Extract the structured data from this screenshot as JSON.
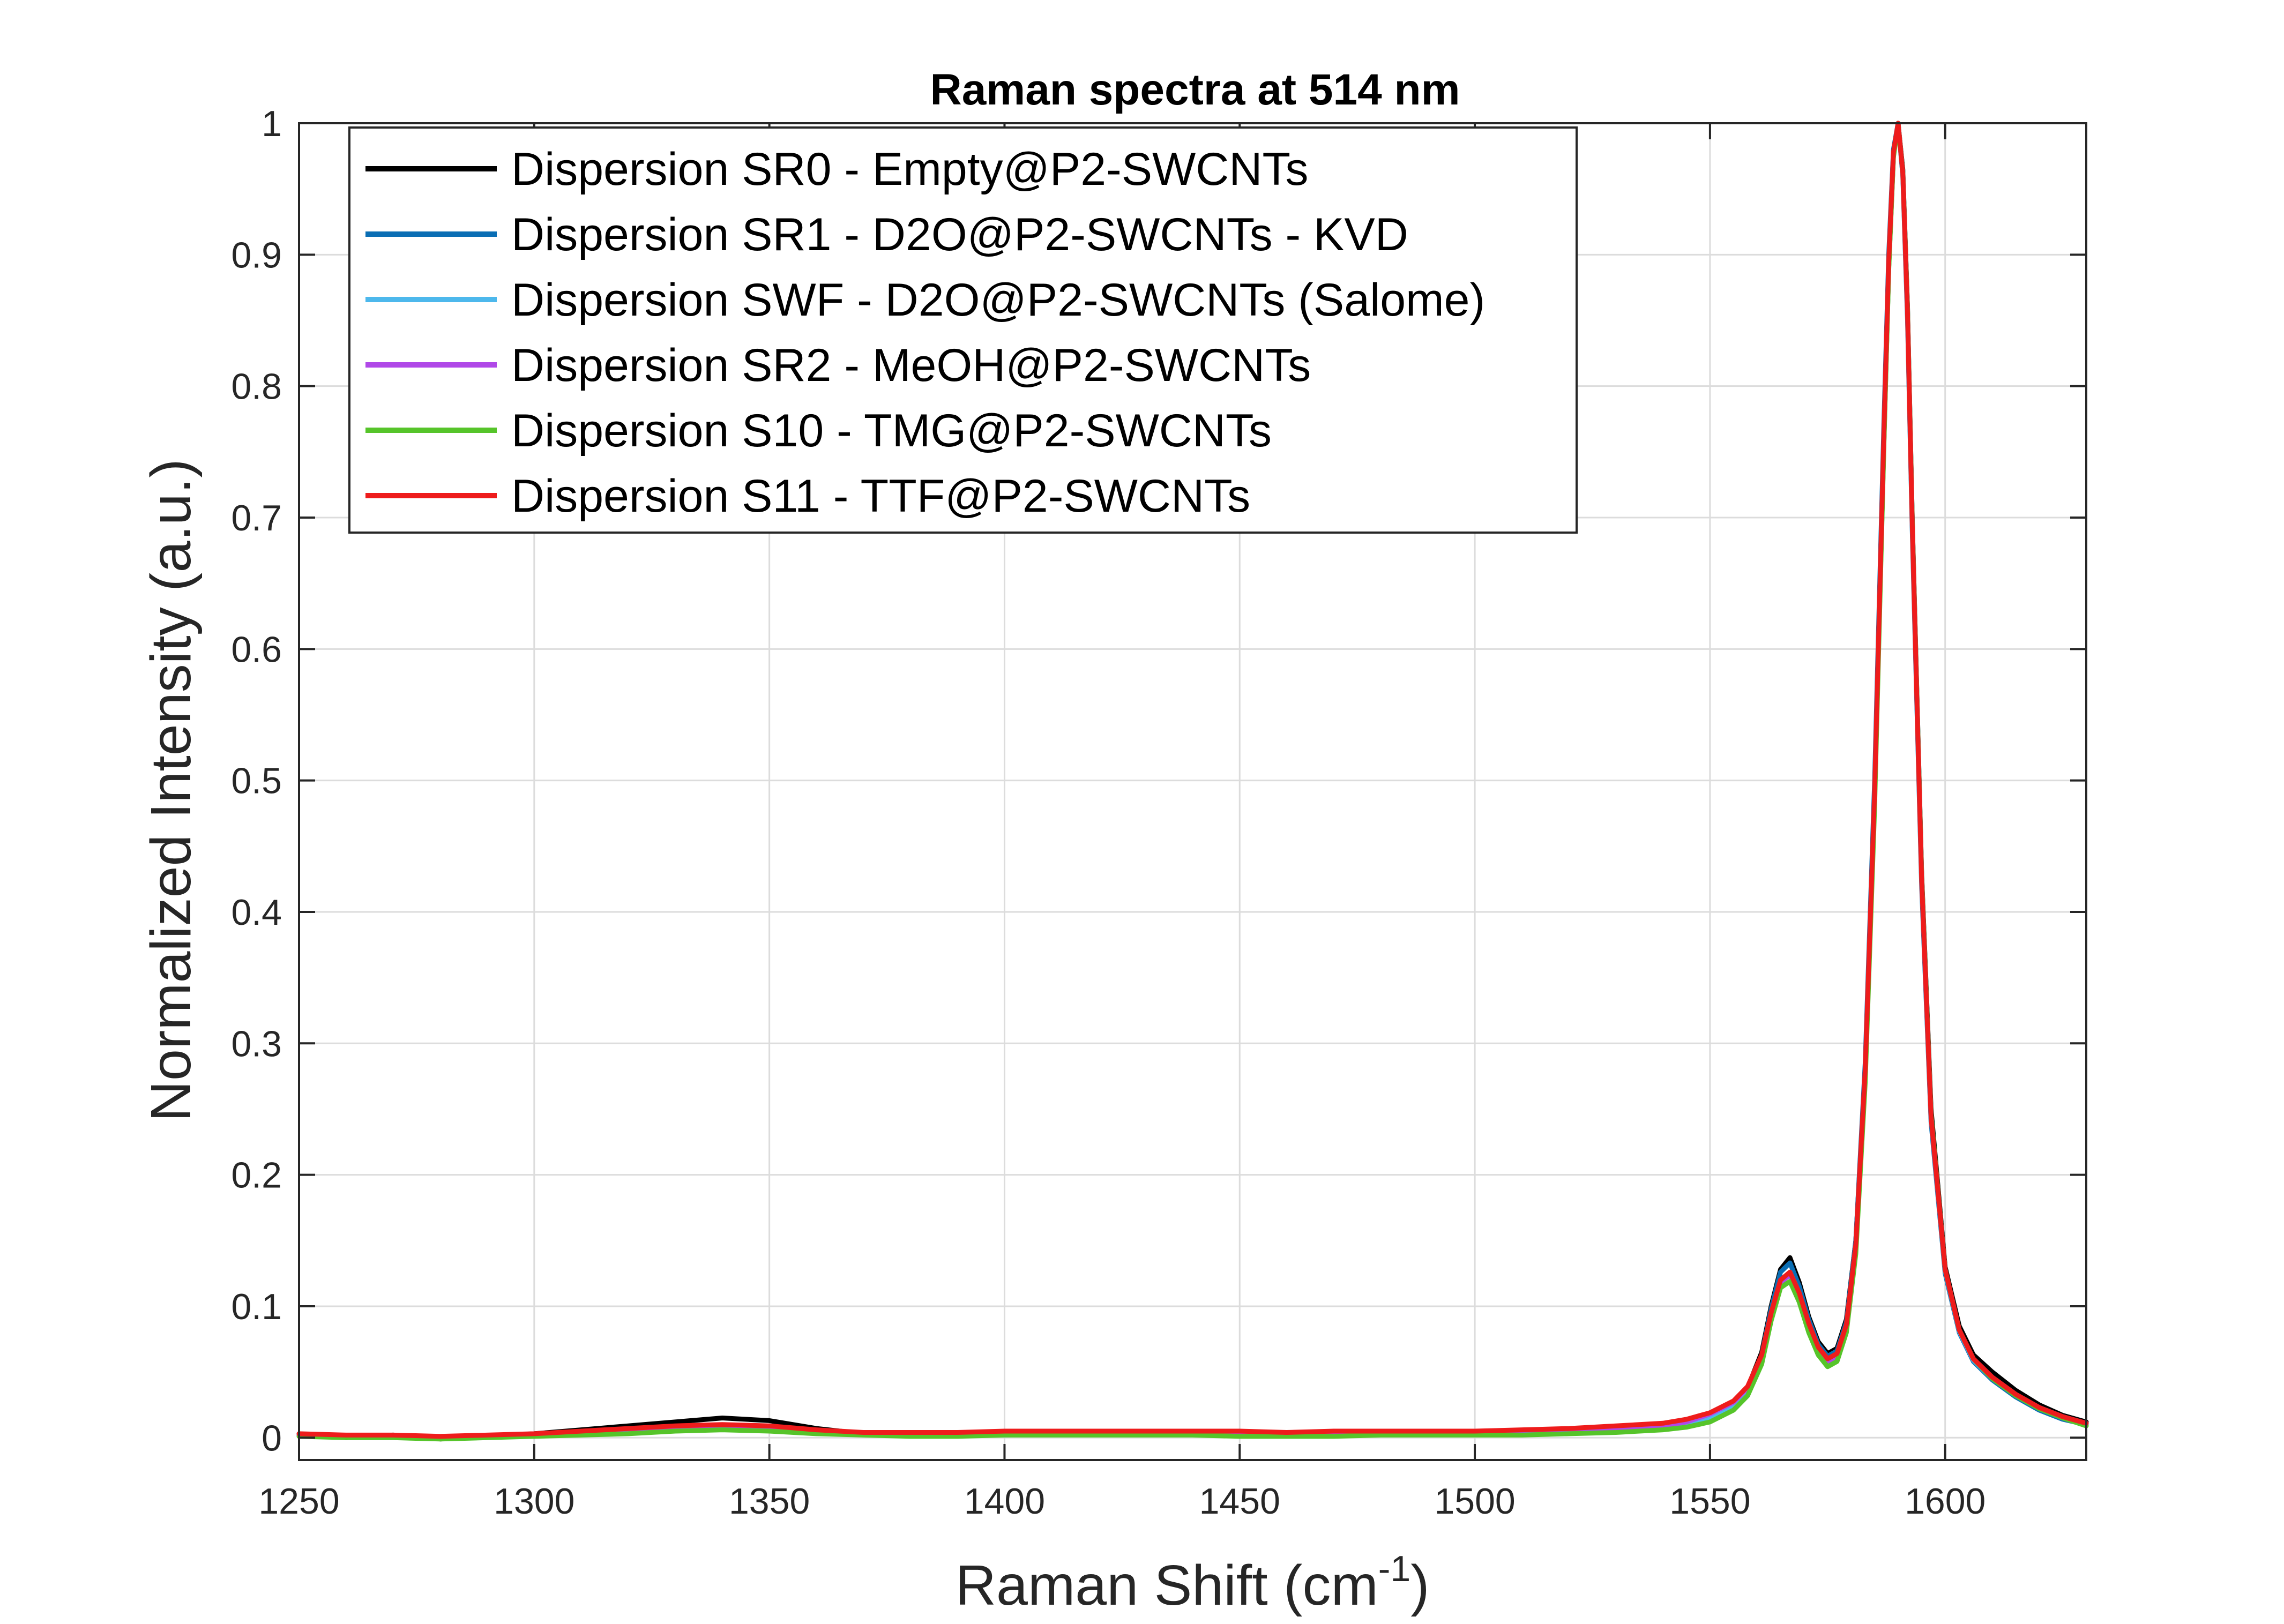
{
  "chart_data": {
    "type": "line",
    "title": "Raman spectra at 514 nm",
    "xlabel": "Raman Shift (cm",
    "xlabel_superscript": "-1",
    "xlabel_suffix": ")",
    "ylabel": "Normalized Intensity (a.u.)",
    "xlim": [
      1250,
      1630
    ],
    "ylim": [
      -0.017,
      1
    ],
    "xticks": [
      1250,
      1300,
      1350,
      1400,
      1450,
      1500,
      1550,
      1600
    ],
    "xtick_labels": [
      "1250",
      "1300",
      "1350",
      "1400",
      "1450",
      "1500",
      "1550",
      "1600"
    ],
    "yticks": [
      0,
      0.1,
      0.2,
      0.3,
      0.4,
      0.5,
      0.6,
      0.7,
      0.8,
      0.9,
      1
    ],
    "ytick_labels": [
      "0",
      "0.1",
      "0.2",
      "0.3",
      "0.4",
      "0.5",
      "0.6",
      "0.7",
      "0.8",
      "0.9",
      "1"
    ],
    "grid": true,
    "legend_position": "top-left",
    "x": [
      1250,
      1260,
      1270,
      1280,
      1290,
      1300,
      1310,
      1320,
      1330,
      1340,
      1350,
      1360,
      1370,
      1380,
      1390,
      1400,
      1410,
      1420,
      1430,
      1440,
      1450,
      1460,
      1470,
      1480,
      1490,
      1500,
      1510,
      1520,
      1530,
      1540,
      1545,
      1550,
      1555,
      1558,
      1561,
      1563,
      1565,
      1567,
      1569,
      1571,
      1573,
      1575,
      1577,
      1579,
      1581,
      1583,
      1585,
      1587,
      1588,
      1589,
      1590,
      1591,
      1592,
      1593,
      1595,
      1597,
      1600,
      1603,
      1606,
      1610,
      1615,
      1620,
      1625,
      1630
    ],
    "series": [
      {
        "name": "Dispersion SR0 - Empty@P2-SWCNTs",
        "color": "#000000",
        "values": [
          0.003,
          0.0,
          0.002,
          -0.001,
          0.001,
          0.003,
          0.006,
          0.009,
          0.012,
          0.015,
          0.013,
          0.007,
          0.003,
          0.002,
          0.002,
          0.003,
          0.004,
          0.003,
          0.004,
          0.003,
          0.003,
          0.002,
          0.003,
          0.003,
          0.003,
          0.004,
          0.004,
          0.005,
          0.006,
          0.009,
          0.012,
          0.017,
          0.026,
          0.038,
          0.065,
          0.1,
          0.128,
          0.137,
          0.118,
          0.092,
          0.073,
          0.064,
          0.068,
          0.09,
          0.15,
          0.28,
          0.49,
          0.76,
          0.89,
          0.975,
          1.0,
          0.965,
          0.86,
          0.7,
          0.43,
          0.25,
          0.13,
          0.085,
          0.063,
          0.05,
          0.036,
          0.025,
          0.017,
          0.012
        ]
      },
      {
        "name": "Dispersion SR1 - D2O@P2-SWCNTs - KVD",
        "color": "#0a6eb4",
        "values": [
          0.002,
          0.001,
          0.001,
          0.0,
          0.001,
          0.002,
          0.004,
          0.006,
          0.008,
          0.009,
          0.008,
          0.005,
          0.003,
          0.002,
          0.002,
          0.003,
          0.003,
          0.003,
          0.003,
          0.003,
          0.003,
          0.002,
          0.003,
          0.003,
          0.003,
          0.003,
          0.004,
          0.004,
          0.006,
          0.008,
          0.011,
          0.016,
          0.025,
          0.037,
          0.063,
          0.098,
          0.126,
          0.133,
          0.115,
          0.09,
          0.071,
          0.062,
          0.066,
          0.088,
          0.15,
          0.285,
          0.5,
          0.775,
          0.9,
          0.98,
          1.0,
          0.96,
          0.85,
          0.69,
          0.42,
          0.24,
          0.125,
          0.08,
          0.058,
          0.044,
          0.031,
          0.021,
          0.014,
          0.01
        ]
      },
      {
        "name": "Dispersion SWF - D2O@P2-SWCNTs (Salome)",
        "color": "#4db8ec",
        "values": [
          0.002,
          0.001,
          0.001,
          0.0,
          0.001,
          0.002,
          0.003,
          0.004,
          0.006,
          0.007,
          0.006,
          0.004,
          0.003,
          0.002,
          0.002,
          0.002,
          0.003,
          0.003,
          0.003,
          0.003,
          0.002,
          0.002,
          0.002,
          0.003,
          0.003,
          0.003,
          0.003,
          0.004,
          0.005,
          0.008,
          0.01,
          0.015,
          0.024,
          0.035,
          0.06,
          0.093,
          0.119,
          0.126,
          0.11,
          0.086,
          0.068,
          0.059,
          0.063,
          0.085,
          0.146,
          0.278,
          0.49,
          0.765,
          0.893,
          0.977,
          1.0,
          0.962,
          0.855,
          0.695,
          0.425,
          0.243,
          0.127,
          0.081,
          0.059,
          0.045,
          0.032,
          0.022,
          0.015,
          0.01
        ]
      },
      {
        "name": "Dispersion SR2 - MeOH@P2-SWCNTs",
        "color": "#b048e8",
        "values": [
          0.002,
          0.001,
          0.001,
          0.0,
          0.001,
          0.002,
          0.003,
          0.005,
          0.007,
          0.008,
          0.007,
          0.004,
          0.003,
          0.002,
          0.002,
          0.003,
          0.003,
          0.003,
          0.003,
          0.003,
          0.003,
          0.002,
          0.003,
          0.003,
          0.003,
          0.003,
          0.004,
          0.004,
          0.006,
          0.009,
          0.012,
          0.018,
          0.027,
          0.038,
          0.062,
          0.094,
          0.118,
          0.124,
          0.108,
          0.085,
          0.067,
          0.058,
          0.062,
          0.084,
          0.145,
          0.276,
          0.488,
          0.763,
          0.892,
          0.976,
          1.0,
          0.963,
          0.857,
          0.697,
          0.427,
          0.245,
          0.128,
          0.082,
          0.06,
          0.046,
          0.033,
          0.023,
          0.016,
          0.011
        ]
      },
      {
        "name": "Dispersion S10 - TMG@P2-SWCNTs",
        "color": "#56c42a",
        "values": [
          0.001,
          0.0,
          0.0,
          -0.001,
          0.0,
          0.001,
          0.002,
          0.003,
          0.005,
          0.006,
          0.005,
          0.003,
          0.002,
          0.001,
          0.001,
          0.002,
          0.002,
          0.002,
          0.002,
          0.002,
          0.001,
          0.001,
          0.001,
          0.002,
          0.002,
          0.002,
          0.002,
          0.003,
          0.004,
          0.006,
          0.008,
          0.012,
          0.021,
          0.032,
          0.056,
          0.089,
          0.114,
          0.119,
          0.103,
          0.08,
          0.063,
          0.054,
          0.058,
          0.08,
          0.14,
          0.27,
          0.48,
          0.758,
          0.888,
          0.974,
          1.0,
          0.963,
          0.858,
          0.698,
          0.428,
          0.246,
          0.128,
          0.082,
          0.06,
          0.045,
          0.032,
          0.022,
          0.015,
          0.009
        ]
      },
      {
        "name": "Dispersion S11 - TTF@P2-SWCNTs",
        "color": "#ee1c1c",
        "values": [
          0.003,
          0.002,
          0.002,
          0.001,
          0.002,
          0.003,
          0.005,
          0.007,
          0.009,
          0.01,
          0.009,
          0.006,
          0.004,
          0.004,
          0.004,
          0.005,
          0.005,
          0.005,
          0.005,
          0.005,
          0.005,
          0.004,
          0.005,
          0.005,
          0.005,
          0.005,
          0.006,
          0.007,
          0.009,
          0.011,
          0.014,
          0.019,
          0.028,
          0.039,
          0.063,
          0.095,
          0.12,
          0.126,
          0.11,
          0.087,
          0.069,
          0.06,
          0.064,
          0.086,
          0.147,
          0.28,
          0.492,
          0.768,
          0.895,
          0.978,
          1.0,
          0.962,
          0.855,
          0.695,
          0.425,
          0.244,
          0.128,
          0.082,
          0.06,
          0.046,
          0.033,
          0.023,
          0.016,
          0.011
        ]
      }
    ]
  }
}
